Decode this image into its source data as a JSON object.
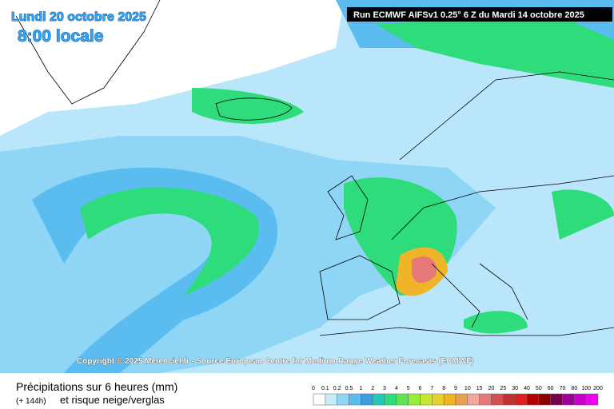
{
  "header": {
    "date": "Lundi 20 octobre 2025",
    "time": "8:00 locale",
    "run": "Run ECMWF AIFSv1 0.25° 6 Z du Mardi 14 octobre 2025"
  },
  "copyright": "Copyright © 2025 Meteociel.fr - Source European Centre for Medium-Range Weather Forecasts (ECMWF)",
  "footer": {
    "title": "Précipitations sur 6 heures (mm)",
    "lead": "(+ 144h)",
    "subtitle": "et risque neige/verglas"
  },
  "legend": {
    "labels": [
      0,
      0.1,
      0.2,
      0.5,
      1,
      2,
      3,
      4,
      5,
      6,
      7,
      8,
      9,
      10,
      15,
      20,
      25,
      30,
      40,
      50,
      60,
      70,
      80,
      100,
      200
    ],
    "colors": [
      "#ffffff",
      "#c6ecfb",
      "#8fd6f6",
      "#5bbcf0",
      "#3a9ee0",
      "#24c8b4",
      "#2edc7c",
      "#5ee650",
      "#96ee3c",
      "#c8e632",
      "#e6d228",
      "#f0b428",
      "#e8a050",
      "#f0a8a0",
      "#e67878",
      "#d25050",
      "#be3232",
      "#dc1e1e",
      "#b40000",
      "#8c0000",
      "#780050",
      "#a0009a",
      "#c800c8",
      "#f000f0"
    ]
  }
}
